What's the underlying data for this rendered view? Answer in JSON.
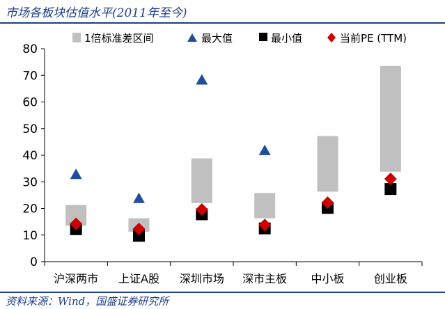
{
  "title": "市场各板块估值水平(2011年至今)",
  "source": "资料来源：Wind，国盛证券研究所",
  "colors": {
    "band": "#c0c0c0",
    "max": "#1f4e9c",
    "min": "#000000",
    "current": "#cc0000",
    "accent": "#1f3d8c"
  },
  "chart_data": {
    "type": "range-bar-with-markers",
    "categories": [
      "沪深两市",
      "上证A股",
      "深圳市场",
      "深市主板",
      "中小板",
      "创业板"
    ],
    "ylim": [
      0,
      80
    ],
    "yticks": [
      0,
      10,
      20,
      30,
      40,
      50,
      60,
      70,
      80
    ],
    "grid": false,
    "legend_position": "top",
    "series": [
      {
        "name": "1倍标准差区间",
        "kind": "range",
        "low": [
          13.5,
          11.2,
          22.0,
          16.3,
          26.3,
          33.8
        ],
        "high": [
          21.3,
          16.3,
          38.8,
          25.8,
          47.2,
          73.5
        ]
      },
      {
        "name": "最大值",
        "kind": "marker",
        "marker": "triangle",
        "values": [
          33.0,
          24.0,
          68.5,
          42.0,
          null,
          null
        ]
      },
      {
        "name": "最小值",
        "kind": "marker",
        "marker": "square",
        "values": [
          12.2,
          9.7,
          17.8,
          12.5,
          20.2,
          27.3
        ]
      },
      {
        "name": "当前PE (TTM)",
        "kind": "marker",
        "marker": "diamond",
        "values": [
          14.2,
          12.3,
          19.6,
          13.8,
          22.2,
          31.1
        ]
      }
    ]
  }
}
